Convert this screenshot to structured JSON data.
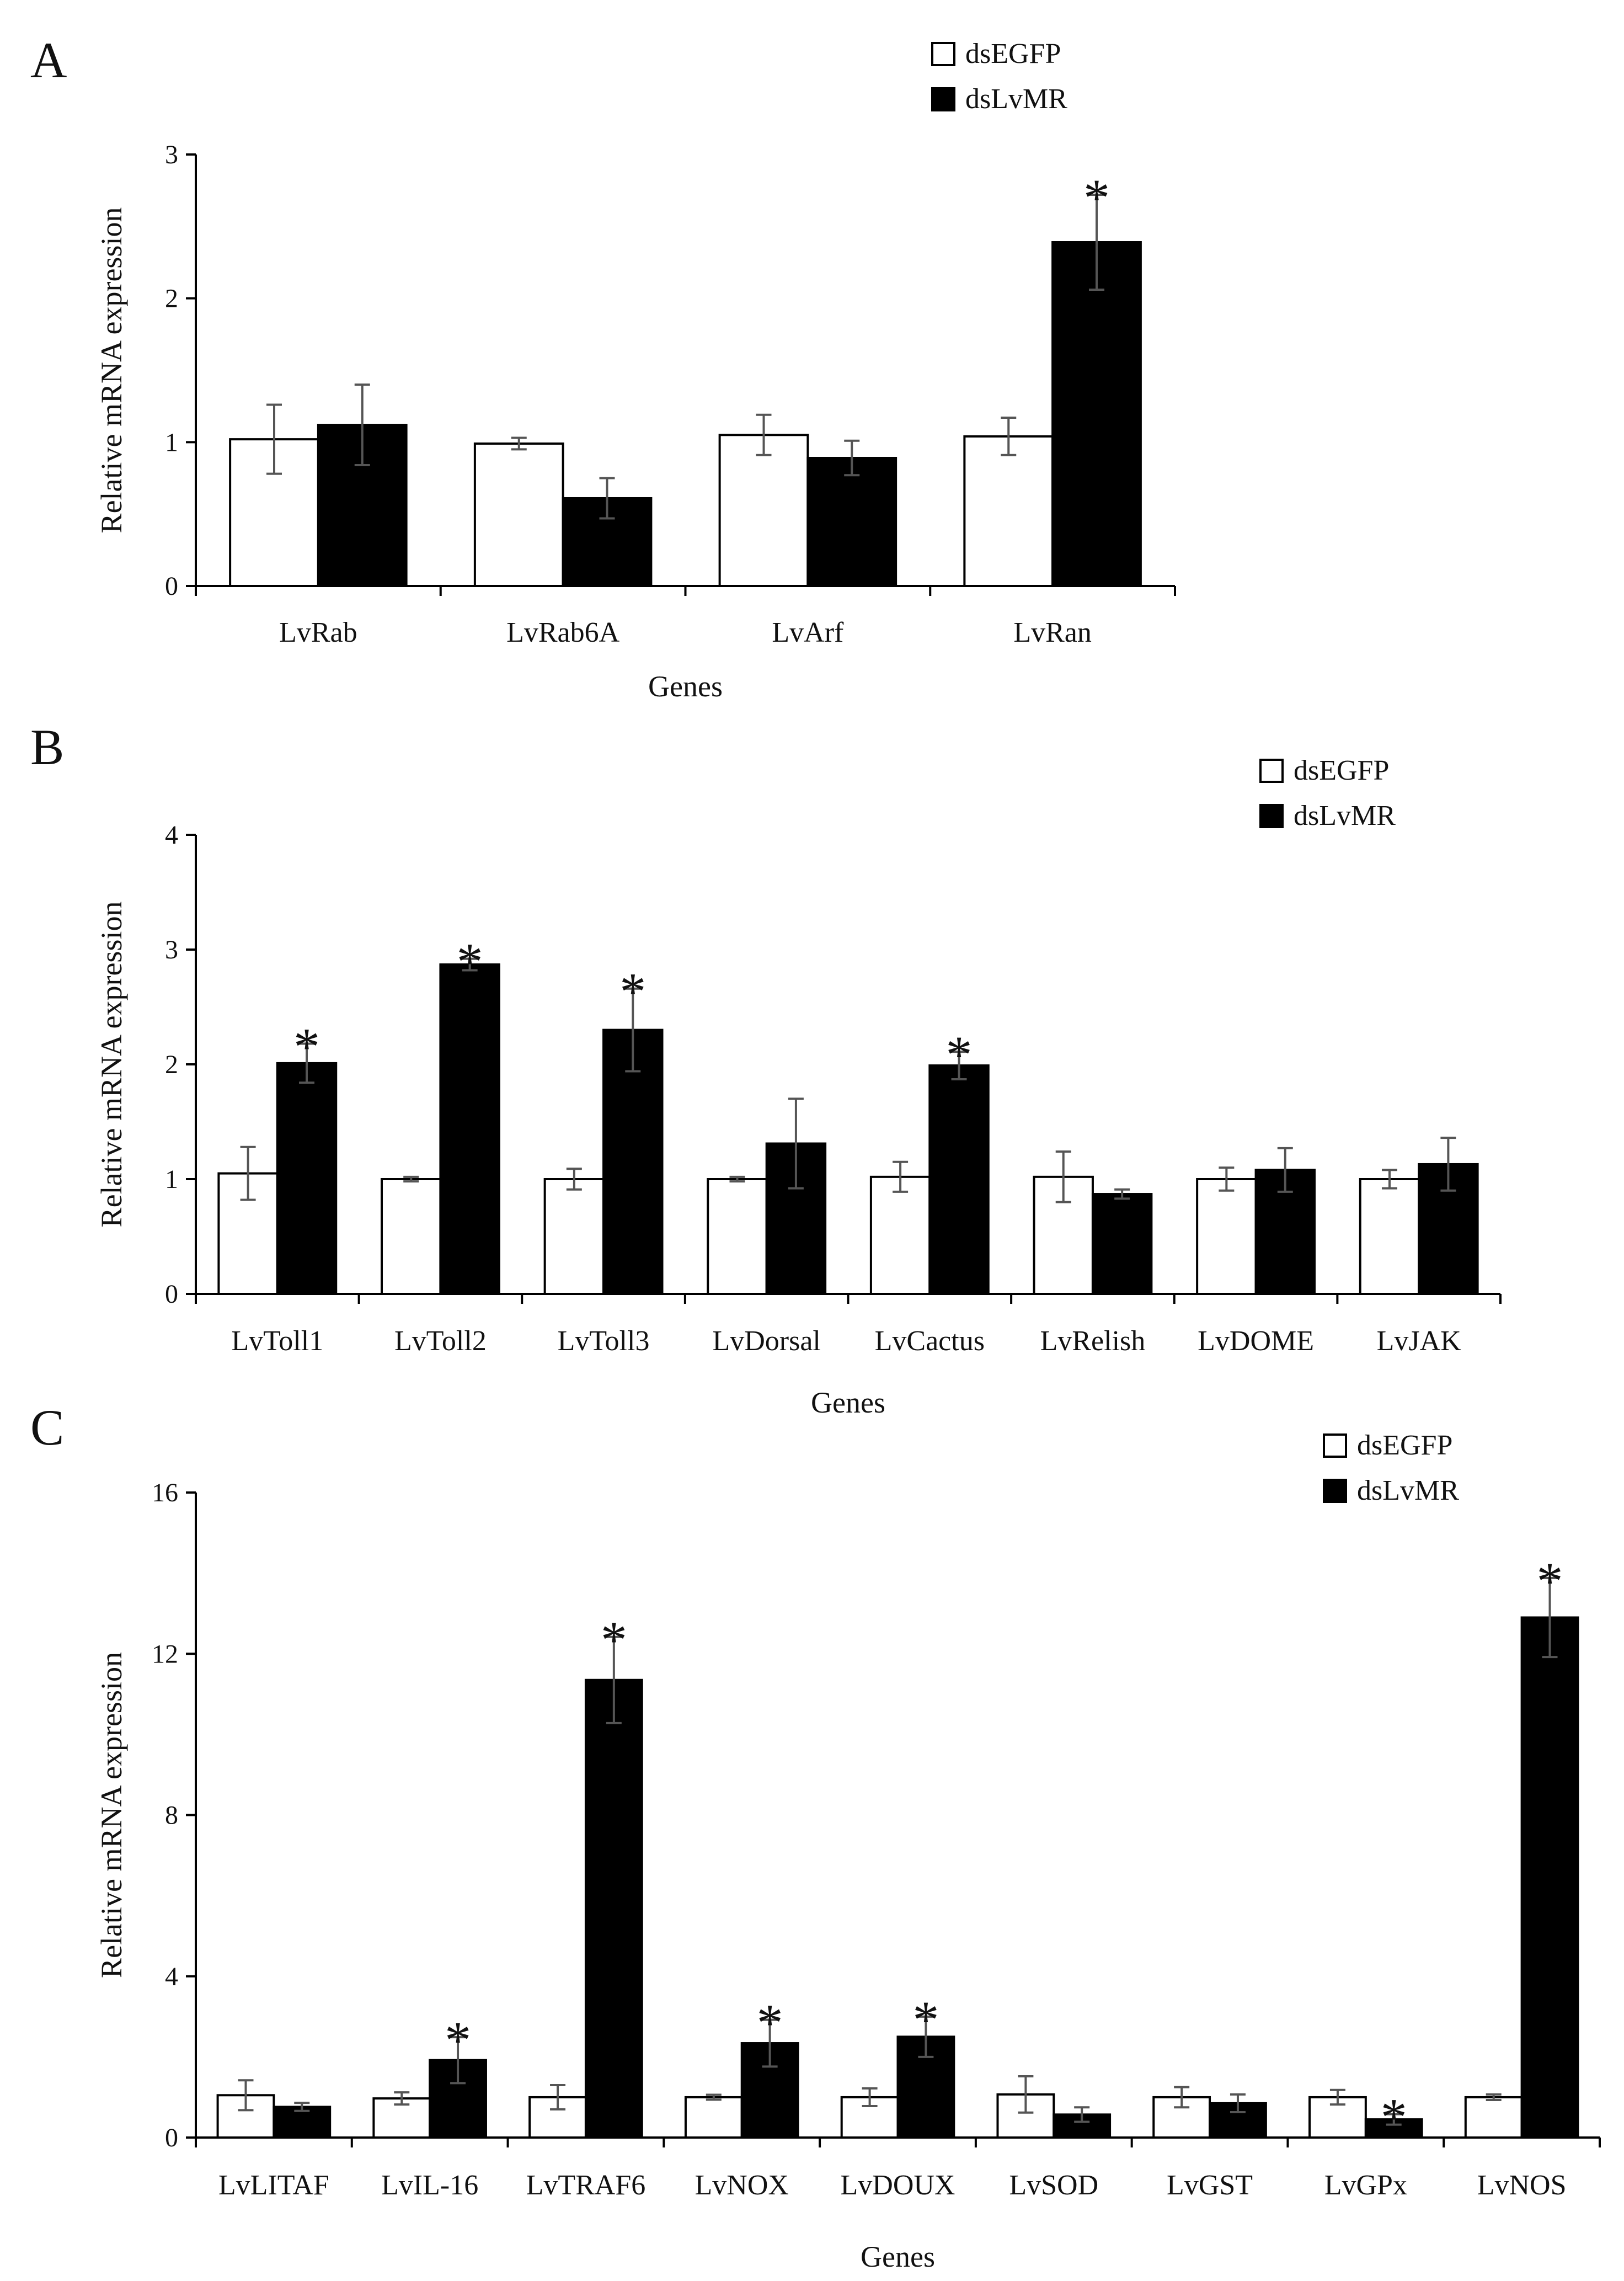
{
  "figure": {
    "panels": [
      {
        "letter": "A",
        "legend": [
          "dsEGFP",
          "dsLvMR"
        ],
        "xlabel": "Genes",
        "ylabel": "Relative mRNA expression"
      },
      {
        "letter": "B",
        "legend": [
          "dsEGFP",
          "dsLvMR"
        ],
        "xlabel": "Genes",
        "ylabel": "Relative mRNA expression"
      },
      {
        "letter": "C",
        "legend": [
          "dsEGFP",
          "dsLvMR"
        ],
        "xlabel": "Genes",
        "ylabel": "Relative mRNA expression"
      }
    ]
  },
  "colors": {
    "control_fill": "#ffffff",
    "treatment_fill": "#000000",
    "stroke": "#000000",
    "errorbar": "#555555"
  },
  "chart_data": [
    {
      "type": "bar",
      "title": "A",
      "xlabel": "Genes",
      "ylabel": "Relative mRNA expression",
      "ylim": [
        0,
        3
      ],
      "yticks": [
        0,
        1,
        2,
        3
      ],
      "categories": [
        "LvRab",
        "LvRab6A",
        "LvArf",
        "LvRan"
      ],
      "series": [
        {
          "name": "dsEGFP",
          "values": [
            1.02,
            0.99,
            1.05,
            1.04
          ],
          "errors": [
            0.24,
            0.04,
            0.14,
            0.13
          ]
        },
        {
          "name": "dsLvMR",
          "values": [
            1.12,
            0.61,
            0.89,
            2.39
          ],
          "errors": [
            0.28,
            0.14,
            0.12,
            0.33
          ]
        }
      ],
      "significant": [
        "LvRan"
      ],
      "significance_mark": "*",
      "legend": "top-right"
    },
    {
      "type": "bar",
      "title": "B",
      "xlabel": "Genes",
      "ylabel": "Relative mRNA expression",
      "ylim": [
        0,
        4
      ],
      "yticks": [
        0,
        1,
        2,
        3,
        4
      ],
      "categories": [
        "LvToll1",
        "LvToll2",
        "LvToll3",
        "LvDorsal",
        "LvCactus",
        "LvRelish",
        "LvDOME",
        "LvJAK"
      ],
      "series": [
        {
          "name": "dsEGFP",
          "values": [
            1.05,
            1.0,
            1.0,
            1.0,
            1.02,
            1.02,
            1.0,
            1.0
          ],
          "errors": [
            0.23,
            0.02,
            0.09,
            0.02,
            0.13,
            0.22,
            0.1,
            0.08
          ]
        },
        {
          "name": "dsLvMR",
          "values": [
            2.01,
            2.87,
            2.3,
            1.31,
            1.99,
            0.87,
            1.08,
            1.13
          ],
          "errors": [
            0.17,
            0.05,
            0.36,
            0.39,
            0.12,
            0.04,
            0.19,
            0.23
          ]
        }
      ],
      "significant": [
        "LvToll1",
        "LvToll2",
        "LvToll3",
        "LvCactus"
      ],
      "significance_mark": "*",
      "legend": "top-right"
    },
    {
      "type": "bar",
      "title": "C",
      "xlabel": "Genes",
      "ylabel": "Relative mRNA expression",
      "ylim": [
        0,
        16
      ],
      "yticks": [
        0,
        4,
        8,
        12,
        16
      ],
      "categories": [
        "LvLITAF",
        "LvIL-16",
        "LvTRAF6",
        "LvNOX",
        "LvDOUX",
        "LvSOD",
        "LvGST",
        "LvGPx",
        "LvNOS"
      ],
      "series": [
        {
          "name": "dsEGFP",
          "values": [
            1.05,
            0.97,
            1.0,
            1.0,
            1.0,
            1.07,
            1.0,
            1.0,
            1.0
          ],
          "errors": [
            0.37,
            0.15,
            0.3,
            0.06,
            0.22,
            0.45,
            0.25,
            0.18,
            0.07
          ]
        },
        {
          "name": "dsLvMR",
          "values": [
            0.76,
            1.92,
            11.35,
            2.34,
            2.5,
            0.57,
            0.85,
            0.45,
            12.9
          ],
          "errors": [
            0.1,
            0.57,
            1.07,
            0.58,
            0.5,
            0.18,
            0.22,
            0.13,
            0.98
          ]
        }
      ],
      "significant": [
        "LvIL-16",
        "LvTRAF6",
        "LvNOX",
        "LvDOUX",
        "LvGPx",
        "LvNOS"
      ],
      "significance_mark": "*",
      "legend": "top-right"
    }
  ]
}
